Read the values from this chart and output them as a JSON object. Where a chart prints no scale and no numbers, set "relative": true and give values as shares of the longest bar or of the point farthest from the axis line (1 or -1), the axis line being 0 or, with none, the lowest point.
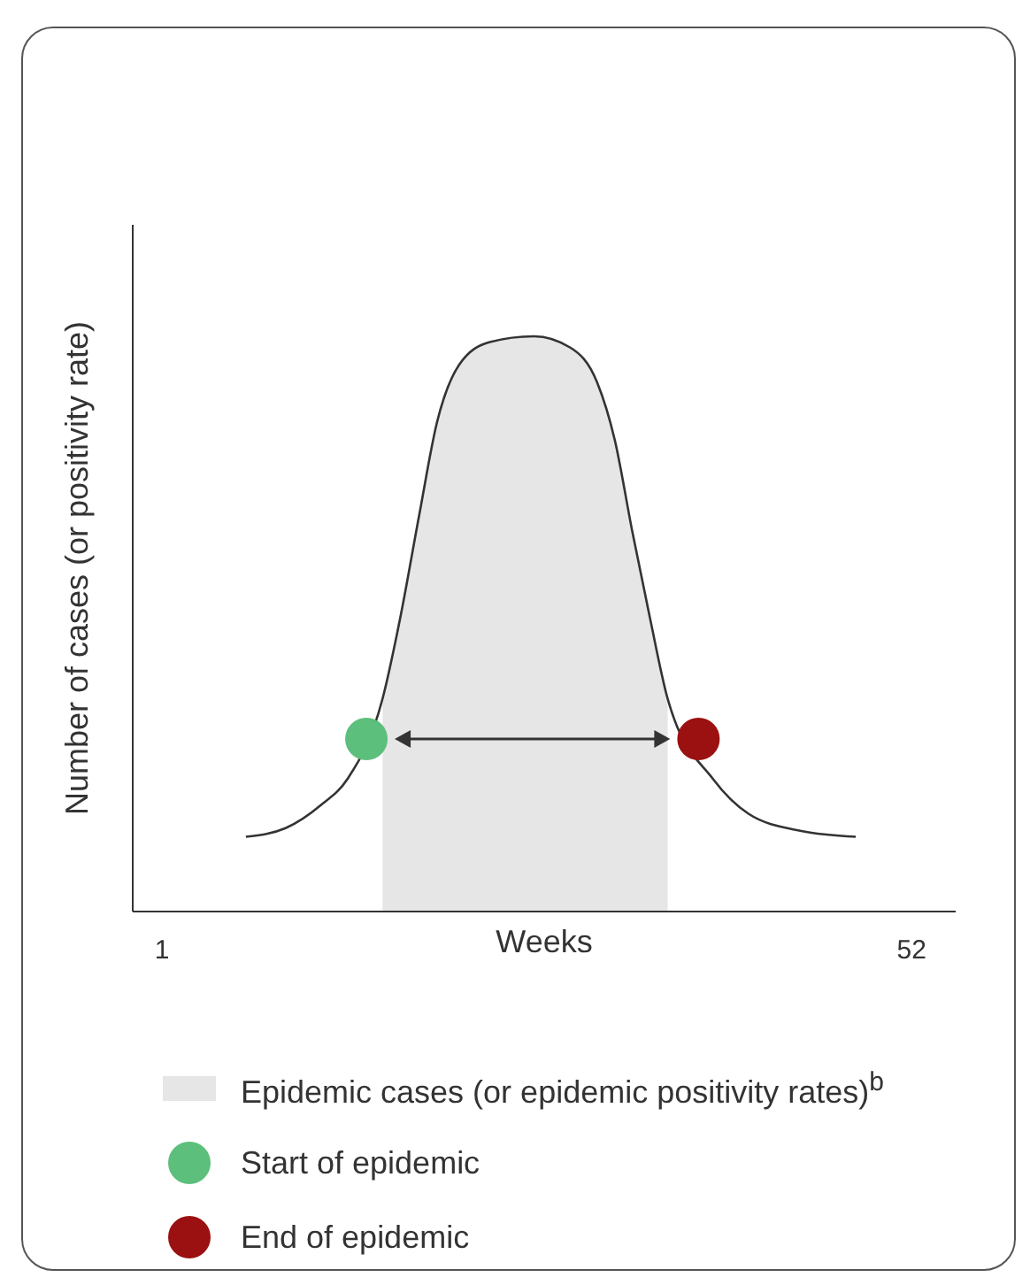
{
  "chart_data": {
    "type": "line",
    "relative": true,
    "xlabel": "Weeks",
    "ylabel": "Number of cases (or positivity rate)",
    "xlim": [
      -1,
      55
    ],
    "xticks": [
      1,
      52
    ],
    "legend": "bottom",
    "series": [
      {
        "color": "#333333",
        "x": [
          6.7,
          9.4,
          11.8,
          13.6,
          16.0,
          17.2,
          18.5,
          19.7,
          21.2,
          23.3,
          26.3,
          28.8,
          30.6,
          31.8,
          33.0,
          34.2,
          35.4,
          38.5,
          40.9,
          44.5,
          48.2
        ],
        "values": [
          0.13,
          0.145,
          0.185,
          0.23,
          0.37,
          0.51,
          0.69,
          0.85,
          0.95,
          0.99,
          1.0,
          0.98,
          0.92,
          0.82,
          0.66,
          0.51,
          0.37,
          0.23,
          0.17,
          0.14,
          0.13
        ]
      },
      {
        "type": "area",
        "name": "Epidemic cases (or epidemic positivity rates)$^{b}$",
        "color": "#e6e6e6",
        "x": [
          16.0,
          17.2,
          18.5,
          19.7,
          21.2,
          23.3,
          26.3,
          28.8,
          30.6,
          31.8,
          33.0,
          34.2,
          35.4
        ],
        "values": [
          0.37,
          0.51,
          0.69,
          0.85,
          0.95,
          0.99,
          1.0,
          0.98,
          0.92,
          0.82,
          0.66,
          0.51,
          0.37
        ]
      },
      {
        "type": "scatter",
        "name": "Start of epidemic",
        "color": "#5cbf7b",
        "x": [
          14.9
        ],
        "values": [
          0.3
        ]
      },
      {
        "type": "scatter",
        "name": "End of epidemic",
        "color": "#9b1010",
        "x": [
          37.5
        ],
        "values": [
          0.3
        ]
      }
    ]
  }
}
